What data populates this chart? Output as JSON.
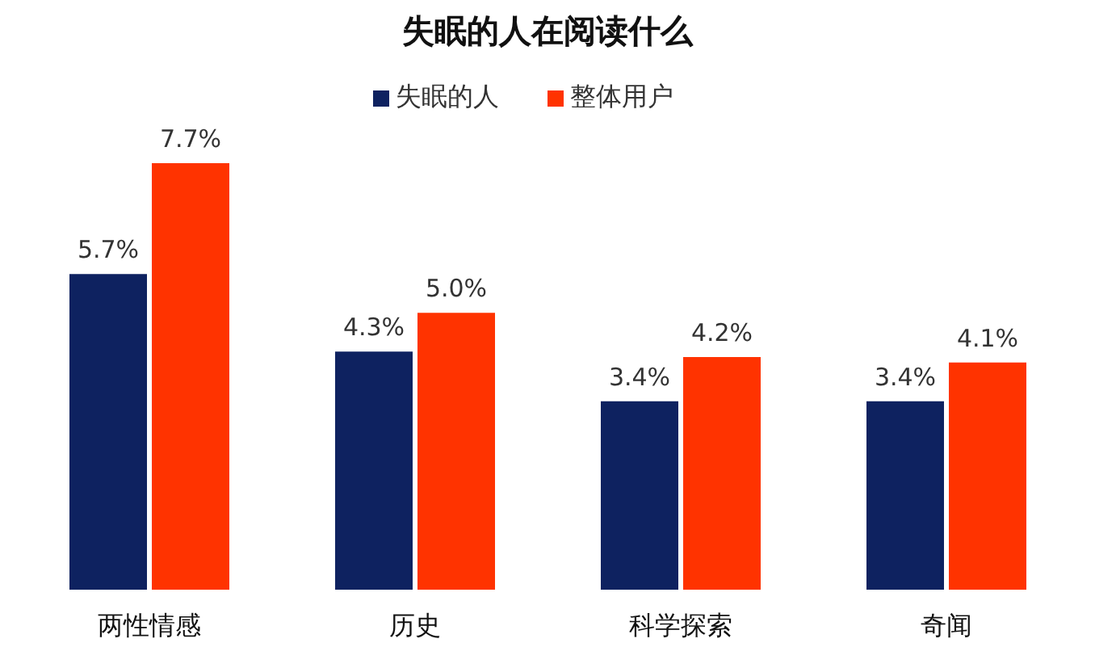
{
  "chart_data": {
    "type": "bar",
    "title": "失眠的人在阅读什么",
    "categories": [
      "两性情感",
      "历史",
      "科学探索",
      "奇闻"
    ],
    "series": [
      {
        "name": "失眠的人",
        "color": "#0e2260",
        "values": [
          5.7,
          4.3,
          3.4,
          3.4
        ],
        "value_labels": [
          "5.7%",
          "4.3%",
          "3.4%",
          "3.4%"
        ]
      },
      {
        "name": "整体用户",
        "color": "#ff3300",
        "values": [
          7.7,
          5.0,
          4.2,
          4.1
        ],
        "value_labels": [
          "7.7%",
          "5.0%",
          "4.2%",
          "4.1%"
        ]
      }
    ],
    "legend": "top",
    "grid": false
  }
}
